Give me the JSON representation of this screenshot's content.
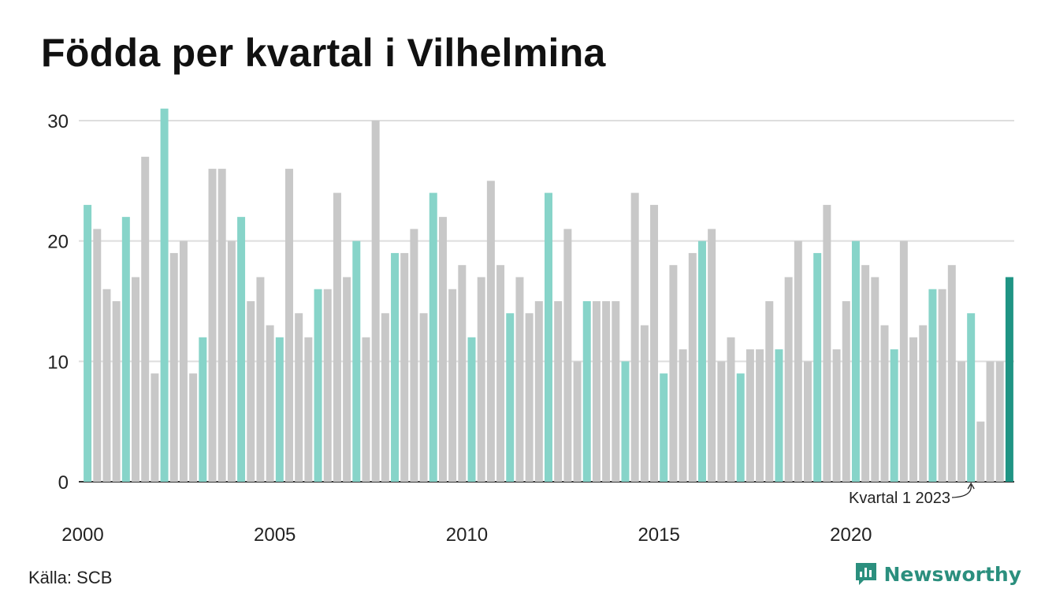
{
  "title": "Födda per kvartal i Vilhelmina",
  "source": "Källa: SCB",
  "brand": "Newsworthy",
  "annotation": "Kvartal 1 2023",
  "colors": {
    "q1": "#87d4c9",
    "other": "#c8c8c8",
    "latest": "#1f9484",
    "grid": "#dedede",
    "axis": "#333333",
    "brand": "#2b8f7e"
  },
  "chart_data": {
    "type": "bar",
    "title": "Födda per kvartal i Vilhelmina",
    "xlabel": "",
    "ylabel": "",
    "ylim": [
      0,
      30
    ],
    "yticks": [
      0,
      10,
      20,
      30
    ],
    "xticks": [
      "2000",
      "2005",
      "2010",
      "2015",
      "2020"
    ],
    "grid": true,
    "start_year": 2000,
    "values": [
      23,
      21,
      16,
      15,
      22,
      17,
      27,
      9,
      31,
      19,
      20,
      9,
      12,
      26,
      26,
      20,
      22,
      15,
      17,
      13,
      12,
      26,
      14,
      12,
      16,
      16,
      24,
      17,
      20,
      12,
      30,
      14,
      19,
      19,
      21,
      14,
      24,
      22,
      16,
      18,
      12,
      17,
      25,
      18,
      14,
      17,
      14,
      15,
      24,
      15,
      21,
      10,
      15,
      15,
      15,
      15,
      10,
      24,
      13,
      23,
      9,
      18,
      11,
      19,
      20,
      21,
      10,
      12,
      9,
      11,
      11,
      15,
      11,
      17,
      20,
      10,
      19,
      23,
      11,
      15,
      20,
      18,
      17,
      13,
      11,
      20,
      12,
      13,
      16,
      16,
      18,
      10,
      14,
      5,
      10,
      10,
      17
    ]
  }
}
